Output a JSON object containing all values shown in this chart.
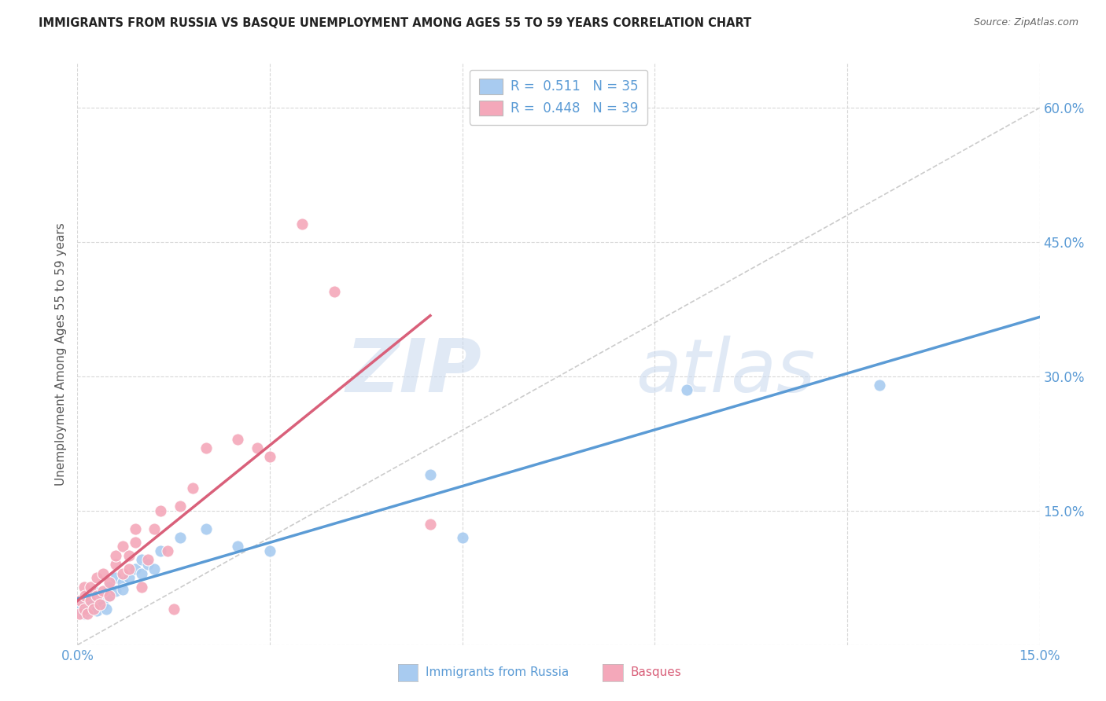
{
  "title": "IMMIGRANTS FROM RUSSIA VS BASQUE UNEMPLOYMENT AMONG AGES 55 TO 59 YEARS CORRELATION CHART",
  "source": "Source: ZipAtlas.com",
  "ylabel": "Unemployment Among Ages 55 to 59 years",
  "xlim": [
    0,
    0.15
  ],
  "ylim": [
    0,
    0.65
  ],
  "xticks": [
    0.0,
    0.03,
    0.06,
    0.09,
    0.12,
    0.15
  ],
  "yticks": [
    0.0,
    0.15,
    0.3,
    0.45,
    0.6
  ],
  "xticklabels": [
    "0.0%",
    "",
    "",
    "",
    "",
    "15.0%"
  ],
  "yticklabels": [
    "",
    "15.0%",
    "30.0%",
    "45.0%",
    "60.0%"
  ],
  "background_color": "#ffffff",
  "grid_color": "#d8d8d8",
  "watermark_line1": "ZIP",
  "watermark_line2": "atlas",
  "blue_color": "#A8CBF0",
  "pink_color": "#F4A8BA",
  "blue_line_color": "#5B9BD5",
  "pink_line_color": "#D9607A",
  "diagonal_color": "#cccccc",
  "tick_color": "#5B9BD5",
  "blue_scatter_x": [
    0.0005,
    0.001,
    0.0012,
    0.0015,
    0.002,
    0.002,
    0.0022,
    0.0025,
    0.003,
    0.003,
    0.0035,
    0.004,
    0.004,
    0.0045,
    0.005,
    0.005,
    0.006,
    0.006,
    0.007,
    0.007,
    0.008,
    0.009,
    0.01,
    0.01,
    0.011,
    0.012,
    0.013,
    0.016,
    0.02,
    0.025,
    0.03,
    0.055,
    0.06,
    0.095,
    0.125
  ],
  "blue_scatter_y": [
    0.04,
    0.035,
    0.05,
    0.038,
    0.04,
    0.055,
    0.045,
    0.06,
    0.055,
    0.038,
    0.048,
    0.055,
    0.045,
    0.04,
    0.055,
    0.065,
    0.06,
    0.075,
    0.07,
    0.062,
    0.075,
    0.085,
    0.08,
    0.095,
    0.09,
    0.085,
    0.105,
    0.12,
    0.13,
    0.11,
    0.105,
    0.19,
    0.12,
    0.285,
    0.29
  ],
  "pink_scatter_x": [
    0.0003,
    0.0005,
    0.001,
    0.001,
    0.0012,
    0.0015,
    0.002,
    0.002,
    0.0025,
    0.003,
    0.003,
    0.0035,
    0.004,
    0.004,
    0.005,
    0.005,
    0.006,
    0.006,
    0.007,
    0.007,
    0.008,
    0.008,
    0.009,
    0.009,
    0.01,
    0.011,
    0.012,
    0.013,
    0.014,
    0.015,
    0.016,
    0.018,
    0.02,
    0.025,
    0.028,
    0.03,
    0.035,
    0.04,
    0.055
  ],
  "pink_scatter_y": [
    0.035,
    0.05,
    0.04,
    0.065,
    0.055,
    0.035,
    0.05,
    0.065,
    0.04,
    0.055,
    0.075,
    0.045,
    0.06,
    0.08,
    0.055,
    0.07,
    0.09,
    0.1,
    0.08,
    0.11,
    0.085,
    0.1,
    0.115,
    0.13,
    0.065,
    0.095,
    0.13,
    0.15,
    0.105,
    0.04,
    0.155,
    0.175,
    0.22,
    0.23,
    0.22,
    0.21,
    0.47,
    0.395,
    0.135
  ],
  "figsize": [
    14.06,
    8.92
  ],
  "dpi": 100
}
